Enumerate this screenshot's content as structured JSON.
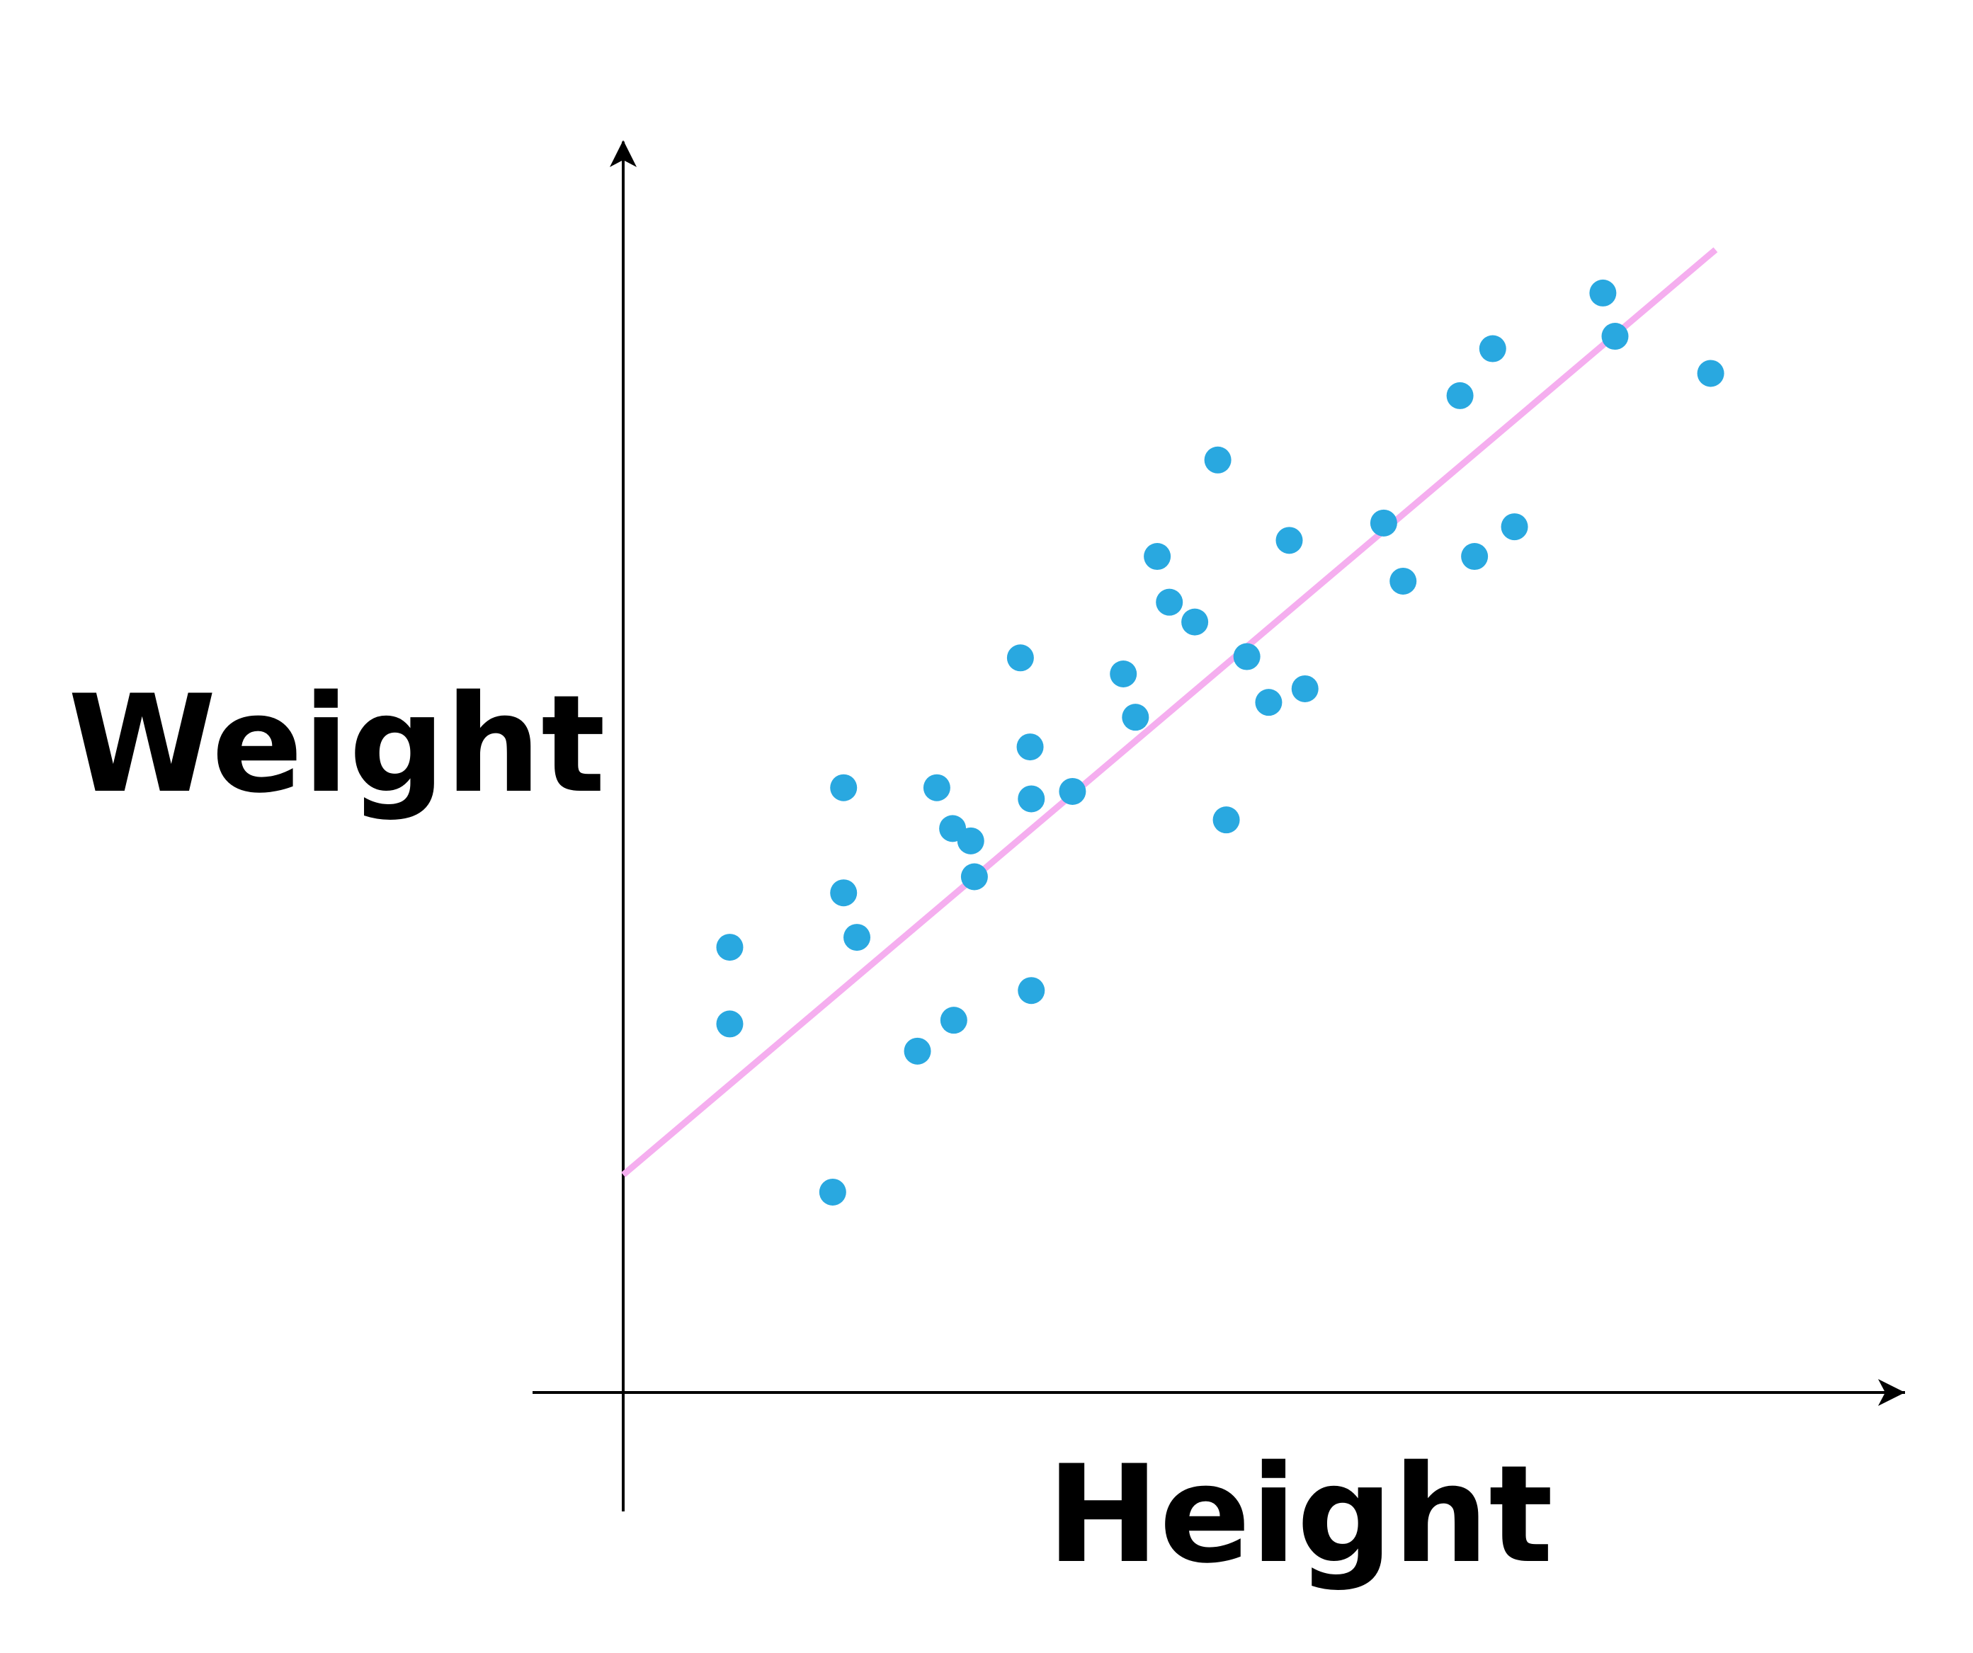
{
  "chart_data": {
    "type": "scatter",
    "xlabel": "Height",
    "ylabel": "Weight",
    "xlim": [
      0,
      100
    ],
    "ylim": [
      0,
      100
    ],
    "grid": false,
    "legend": "none",
    "points_color": "#29A8E0",
    "trendline_color": "#F5AEEF",
    "axis_color": "#000000",
    "points": [
      {
        "x": 8.8,
        "y": 36.0
      },
      {
        "x": 8.8,
        "y": 29.8
      },
      {
        "x": 17.3,
        "y": 16.2
      },
      {
        "x": 18.2,
        "y": 48.9
      },
      {
        "x": 18.2,
        "y": 40.4
      },
      {
        "x": 19.3,
        "y": 36.8
      },
      {
        "x": 24.3,
        "y": 27.6
      },
      {
        "x": 25.9,
        "y": 48.9
      },
      {
        "x": 27.2,
        "y": 45.6
      },
      {
        "x": 27.3,
        "y": 30.1
      },
      {
        "x": 28.7,
        "y": 44.6
      },
      {
        "x": 29.0,
        "y": 41.7
      },
      {
        "x": 32.8,
        "y": 59.4
      },
      {
        "x": 33.6,
        "y": 52.2
      },
      {
        "x": 33.7,
        "y": 48.0
      },
      {
        "x": 33.7,
        "y": 32.5
      },
      {
        "x": 37.1,
        "y": 48.6
      },
      {
        "x": 41.3,
        "y": 58.1
      },
      {
        "x": 42.3,
        "y": 54.6
      },
      {
        "x": 44.1,
        "y": 67.6
      },
      {
        "x": 45.1,
        "y": 63.9
      },
      {
        "x": 47.2,
        "y": 62.3
      },
      {
        "x": 49.1,
        "y": 75.4
      },
      {
        "x": 49.8,
        "y": 46.3
      },
      {
        "x": 51.5,
        "y": 59.5
      },
      {
        "x": 53.3,
        "y": 55.8
      },
      {
        "x": 55.0,
        "y": 68.9
      },
      {
        "x": 56.3,
        "y": 56.9
      },
      {
        "x": 62.8,
        "y": 70.3
      },
      {
        "x": 64.4,
        "y": 65.6
      },
      {
        "x": 69.1,
        "y": 80.6
      },
      {
        "x": 70.3,
        "y": 67.6
      },
      {
        "x": 71.8,
        "y": 84.4
      },
      {
        "x": 73.6,
        "y": 70.0
      },
      {
        "x": 80.9,
        "y": 88.9
      },
      {
        "x": 81.9,
        "y": 85.4
      },
      {
        "x": 89.8,
        "y": 82.4
      }
    ],
    "trendline": {
      "x": [
        0,
        90.2
      ],
      "y": [
        17.6,
        92.4
      ]
    }
  }
}
